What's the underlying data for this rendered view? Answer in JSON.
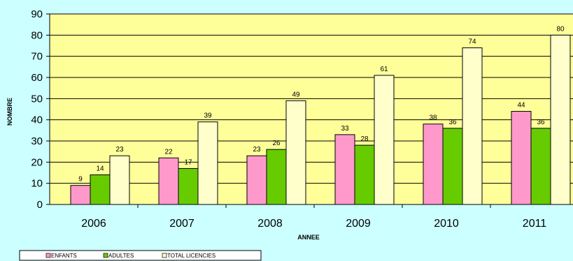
{
  "chart_data": {
    "type": "bar",
    "categories": [
      "2006",
      "2007",
      "2008",
      "2009",
      "2010",
      "2011"
    ],
    "series": [
      {
        "name": "ENFANTS",
        "values": [
          9,
          22,
          23,
          33,
          38,
          44
        ],
        "color": "#ff99cc"
      },
      {
        "name": "ADULTES",
        "values": [
          14,
          17,
          26,
          28,
          36,
          36
        ],
        "color": "#66cc00"
      },
      {
        "name": "TOTAL LICENCIES",
        "values": [
          23,
          39,
          49,
          61,
          74,
          80
        ],
        "color": "#ffffcc"
      }
    ],
    "xlabel": "ANNEE",
    "ylabel": "NOMBRE",
    "ylim": [
      0,
      90
    ],
    "yticks": [
      0,
      10,
      20,
      30,
      40,
      50,
      60,
      70,
      80,
      90
    ],
    "grid": true,
    "legend_position": "bottom-left",
    "plot_background": "#ffff99",
    "page_background": "#ccffff"
  }
}
